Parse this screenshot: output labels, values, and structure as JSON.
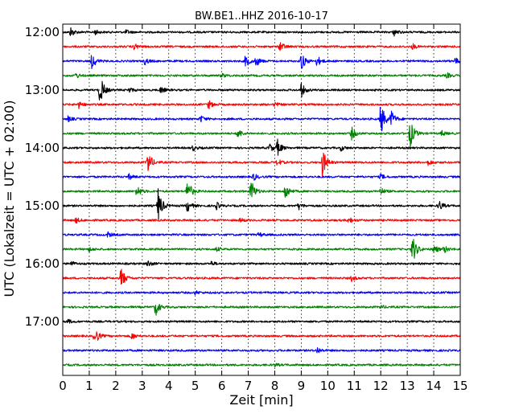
{
  "chart_data": {
    "type": "line",
    "title": "BW.BE1..HHZ 2016-10-17",
    "xlabel": "Zeit  [min]",
    "ylabel": "UTC (Lokalzeit = UTC + 02:00)",
    "xlim": [
      0,
      15
    ],
    "x_ticks": [
      "0",
      "1",
      "2",
      "3",
      "4",
      "5",
      "6",
      "7",
      "8",
      "9",
      "10",
      "11",
      "12",
      "13",
      "14",
      "15"
    ],
    "y_ticks": [
      "12:00",
      "13:00",
      "14:00",
      "15:00",
      "16:00",
      "17:00"
    ],
    "grid": true,
    "colors": [
      "#000000",
      "#ff0000",
      "#0000ff",
      "#008000"
    ],
    "series": [
      {
        "start": "12:00",
        "color": "#000000",
        "events": [
          [
            0.3,
            0.28
          ],
          [
            1.2,
            0.15
          ],
          [
            2.4,
            0.12
          ],
          [
            12.5,
            0.2
          ]
        ]
      },
      {
        "start": "12:15",
        "color": "#ff0000",
        "events": [
          [
            2.7,
            0.18
          ],
          [
            8.2,
            0.32
          ],
          [
            13.2,
            0.15
          ]
        ]
      },
      {
        "start": "12:30",
        "color": "#0000ff",
        "events": [
          [
            1.1,
            0.45
          ],
          [
            3.1,
            0.2
          ],
          [
            6.9,
            0.35
          ],
          [
            7.3,
            0.28
          ],
          [
            9.0,
            0.55
          ],
          [
            9.6,
            0.3
          ],
          [
            14.8,
            0.2
          ]
        ]
      },
      {
        "start": "12:45",
        "color": "#008000",
        "events": [
          [
            0.5,
            0.15
          ],
          [
            6.0,
            0.12
          ],
          [
            14.5,
            0.14
          ]
        ]
      },
      {
        "start": "13:00",
        "color": "#000000",
        "events": [
          [
            1.4,
            0.95
          ],
          [
            2.5,
            0.15
          ],
          [
            3.7,
            0.2
          ],
          [
            9.0,
            0.4
          ]
        ]
      },
      {
        "start": "13:15",
        "color": "#ff0000",
        "events": [
          [
            0.6,
            0.2
          ],
          [
            5.5,
            0.25
          ],
          [
            8.0,
            0.12
          ]
        ]
      },
      {
        "start": "13:30",
        "color": "#0000ff",
        "events": [
          [
            0.2,
            0.15
          ],
          [
            5.2,
            0.2
          ],
          [
            12.0,
            1.0
          ],
          [
            12.4,
            0.45
          ]
        ]
      },
      {
        "start": "13:45",
        "color": "#008000",
        "events": [
          [
            6.6,
            0.3
          ],
          [
            10.9,
            0.35
          ],
          [
            13.1,
            0.9
          ],
          [
            14.3,
            0.15
          ]
        ]
      },
      {
        "start": "14:00",
        "color": "#000000",
        "events": [
          [
            4.9,
            0.15
          ],
          [
            7.8,
            0.25
          ],
          [
            8.1,
            0.45
          ],
          [
            10.5,
            0.15
          ]
        ]
      },
      {
        "start": "14:15",
        "color": "#ff0000",
        "events": [
          [
            3.2,
            0.75
          ],
          [
            8.1,
            0.2
          ],
          [
            9.8,
            0.85
          ],
          [
            13.8,
            0.18
          ]
        ]
      },
      {
        "start": "14:30",
        "color": "#0000ff",
        "events": [
          [
            2.5,
            0.15
          ],
          [
            7.2,
            0.2
          ],
          [
            12.0,
            0.15
          ]
        ]
      },
      {
        "start": "14:45",
        "color": "#008000",
        "events": [
          [
            2.8,
            0.35
          ],
          [
            4.7,
            0.75
          ],
          [
            7.1,
            0.7
          ],
          [
            8.4,
            0.5
          ],
          [
            12.0,
            0.2
          ]
        ]
      },
      {
        "start": "15:00",
        "color": "#000000",
        "events": [
          [
            3.6,
            1.0
          ],
          [
            4.7,
            0.35
          ],
          [
            5.8,
            0.2
          ],
          [
            8.9,
            0.2
          ],
          [
            14.2,
            0.3
          ]
        ]
      },
      {
        "start": "15:15",
        "color": "#ff0000",
        "events": [
          [
            0.5,
            0.15
          ],
          [
            6.7,
            0.12
          ],
          [
            10.8,
            0.18
          ]
        ]
      },
      {
        "start": "15:30",
        "color": "#0000ff",
        "events": [
          [
            1.7,
            0.15
          ],
          [
            7.4,
            0.12
          ]
        ]
      },
      {
        "start": "15:45",
        "color": "#008000",
        "events": [
          [
            1.0,
            0.12
          ],
          [
            5.8,
            0.12
          ],
          [
            13.2,
            0.85
          ],
          [
            14.0,
            0.25
          ],
          [
            14.4,
            0.2
          ]
        ]
      },
      {
        "start": "16:00",
        "color": "#000000",
        "events": [
          [
            0.3,
            0.15
          ],
          [
            3.2,
            0.2
          ],
          [
            5.6,
            0.12
          ]
        ]
      },
      {
        "start": "16:15",
        "color": "#ff0000",
        "events": [
          [
            2.2,
            0.65
          ],
          [
            10.9,
            0.15
          ]
        ]
      },
      {
        "start": "16:30",
        "color": "#0000ff",
        "events": [
          [
            5.0,
            0.1
          ]
        ]
      },
      {
        "start": "16:45",
        "color": "#008000",
        "events": [
          [
            3.5,
            0.5
          ],
          [
            12.0,
            0.1
          ]
        ]
      },
      {
        "start": "17:00",
        "color": "#000000",
        "events": [
          [
            0.2,
            0.1
          ]
        ]
      },
      {
        "start": "17:15",
        "color": "#ff0000",
        "events": [
          [
            1.2,
            0.55
          ],
          [
            2.6,
            0.2
          ]
        ]
      },
      {
        "start": "17:30",
        "color": "#0000ff",
        "events": [
          [
            9.6,
            0.18
          ]
        ]
      },
      {
        "start": "17:45",
        "color": "#008000",
        "events": [
          [
            8.0,
            0.08
          ]
        ]
      }
    ]
  }
}
